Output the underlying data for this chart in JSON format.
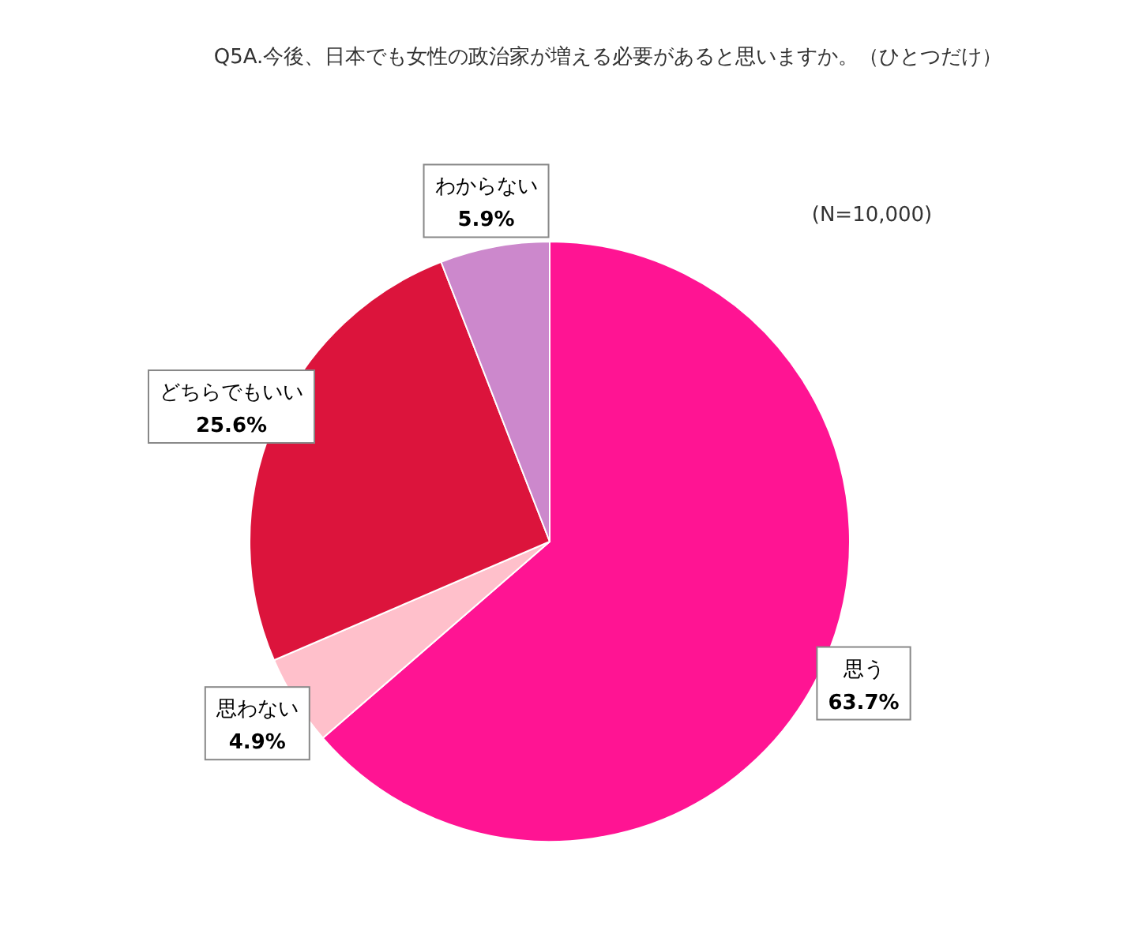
{
  "chart_data": {
    "type": "pie",
    "title": "Q5A.今後、日本でも女性の政治家が増える必要があると思いますか。（ひとつだけ）",
    "categories": [
      "思う",
      "思わない",
      "どちらでもいい",
      "わからない"
    ],
    "values": [
      63.7,
      4.9,
      25.6,
      5.9
    ],
    "value_labels": [
      "63.7%",
      "4.9%",
      "25.6%",
      "5.9%"
    ],
    "colors": [
      "#ff1493",
      "#ffc0cb",
      "#dc143c",
      "#cc88cc"
    ],
    "annotations": [
      "(N=10,000)"
    ]
  }
}
